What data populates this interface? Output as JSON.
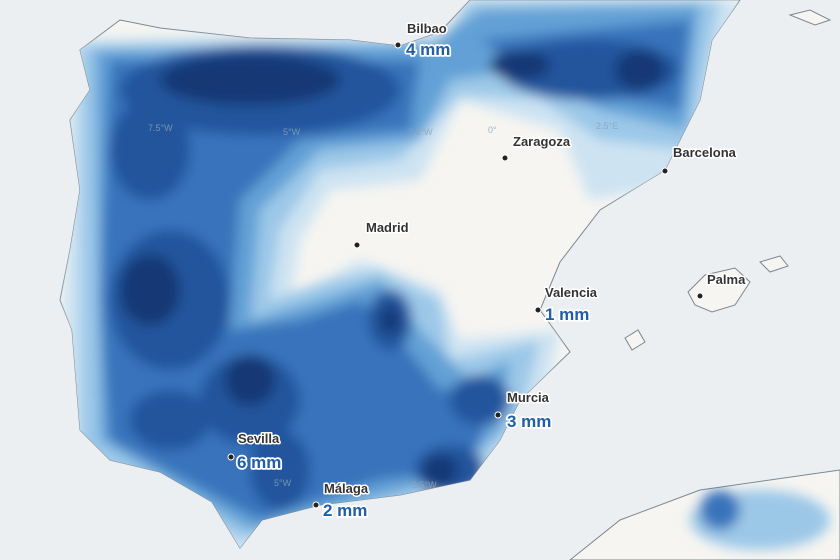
{
  "map": {
    "colors": {
      "sea": "#eceff1",
      "land": "#f6f5f1",
      "rain_scale": [
        "#cde3f2",
        "#9cc8e8",
        "#62a0d6",
        "#3773bb",
        "#22549c",
        "#183874"
      ],
      "value_text": "#1f5ea8"
    },
    "graticule_labels": [
      "7.5°W",
      "5°W",
      "2.5°W",
      "0°",
      "2.5°E",
      "5°W",
      "2.5°W"
    ],
    "cities": [
      {
        "name": "Bilbao",
        "value": "4 mm"
      },
      {
        "name": "Zaragoza"
      },
      {
        "name": "Barcelona"
      },
      {
        "name": "Madrid"
      },
      {
        "name": "Valencia",
        "value": "1 mm"
      },
      {
        "name": "Palma"
      },
      {
        "name": "Murcia",
        "value": "3 mm"
      },
      {
        "name": "Sevilla",
        "value": "6 mm"
      },
      {
        "name": "Málaga",
        "value": "2 mm"
      }
    ]
  }
}
